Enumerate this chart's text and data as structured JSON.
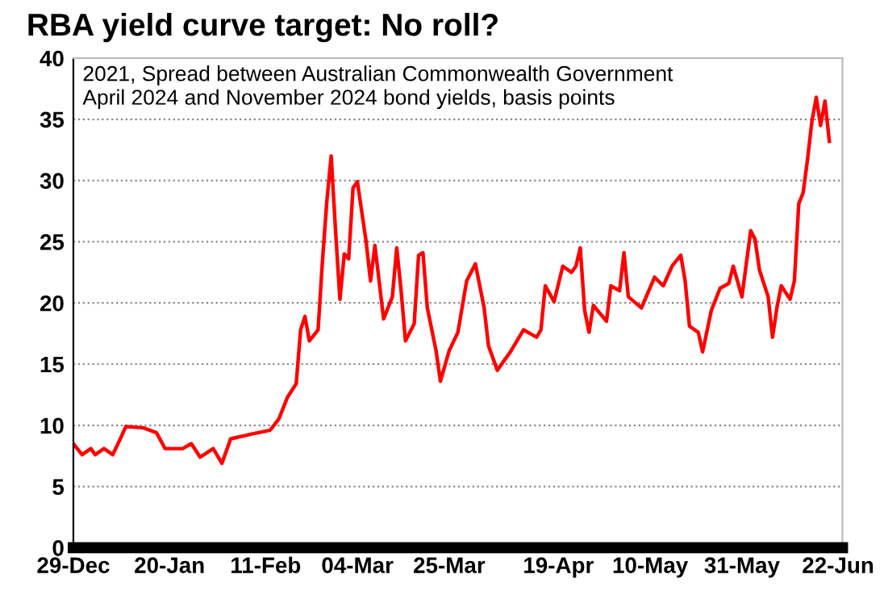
{
  "chart_data": {
    "type": "line",
    "title": "RBA yield curve target: No roll?",
    "subtitle": "2021, Spread between Australian Commonwealth Government\nApril 2024 and November 2024 bond yields, basis points",
    "x": [
      "2020-12-29",
      "2020-12-31",
      "2021-01-02",
      "2021-01-03",
      "2021-01-05",
      "2021-01-07",
      "2021-01-09",
      "2021-01-10",
      "2021-01-14",
      "2021-01-17",
      "2021-01-19",
      "2021-01-23",
      "2021-01-25",
      "2021-01-27",
      "2021-01-30",
      "2021-02-01",
      "2021-02-03",
      "2021-02-08",
      "2021-02-12",
      "2021-02-14",
      "2021-02-16",
      "2021-02-18",
      "2021-02-19",
      "2021-02-20",
      "2021-02-21",
      "2021-02-23",
      "2021-02-24",
      "2021-02-25",
      "2021-02-26",
      "2021-02-27",
      "2021-02-28",
      "2021-03-01",
      "2021-03-02",
      "2021-03-03",
      "2021-03-04",
      "2021-03-06",
      "2021-03-07",
      "2021-03-08",
      "2021-03-10",
      "2021-03-12",
      "2021-03-13",
      "2021-03-14",
      "2021-03-15",
      "2021-03-17",
      "2021-03-18",
      "2021-03-19",
      "2021-03-20",
      "2021-03-22",
      "2021-03-23",
      "2021-03-25",
      "2021-03-27",
      "2021-03-29",
      "2021-03-31",
      "2021-04-02",
      "2021-04-03",
      "2021-04-05",
      "2021-04-08",
      "2021-04-11",
      "2021-04-14",
      "2021-04-15",
      "2021-04-16",
      "2021-04-18",
      "2021-04-20",
      "2021-04-22",
      "2021-04-23",
      "2021-04-24",
      "2021-04-25",
      "2021-04-26",
      "2021-04-27",
      "2021-04-30",
      "2021-05-01",
      "2021-05-03",
      "2021-05-04",
      "2021-05-05",
      "2021-05-08",
      "2021-05-11",
      "2021-05-13",
      "2021-05-15",
      "2021-05-17",
      "2021-05-18",
      "2021-05-19",
      "2021-05-21",
      "2021-05-22",
      "2021-05-24",
      "2021-05-26",
      "2021-05-28",
      "2021-05-29",
      "2021-05-31",
      "2021-06-02",
      "2021-06-03",
      "2021-06-04",
      "2021-06-06",
      "2021-06-07",
      "2021-06-08",
      "2021-06-09",
      "2021-06-11",
      "2021-06-12",
      "2021-06-13",
      "2021-06-14",
      "2021-06-15",
      "2021-06-16",
      "2021-06-17",
      "2021-06-18",
      "2021-06-19",
      "2021-06-20"
    ],
    "series": [
      {
        "color": "#ff0000",
        "values": [
          8.5,
          7.6,
          8.1,
          7.6,
          8.1,
          7.6,
          9.1,
          9.9,
          9.8,
          9.4,
          8.1,
          8.1,
          8.5,
          7.4,
          8.1,
          6.9,
          8.9,
          9.3,
          9.6,
          10.5,
          12.3,
          13.4,
          17.8,
          18.9,
          16.9,
          17.8,
          23.4,
          28.3,
          32,
          25.9,
          20.3,
          24,
          23.6,
          29.4,
          29.9,
          25,
          21.8,
          24.7,
          18.7,
          20.5,
          24.5,
          21,
          16.9,
          18.3,
          23.9,
          24.1,
          19.6,
          16.1,
          13.6,
          16.1,
          17.6,
          21.8,
          23.2,
          19.6,
          16.5,
          14.5,
          16,
          17.8,
          17.2,
          17.8,
          21.4,
          20.1,
          23,
          22.5,
          23,
          24.5,
          19.4,
          17.6,
          19.8,
          18.5,
          21.4,
          21,
          24.1,
          20.5,
          19.6,
          22.1,
          21.4,
          23,
          23.9,
          21.8,
          18.1,
          17.6,
          16,
          19.4,
          21.2,
          21.6,
          23,
          20.5,
          25.9,
          25.2,
          22.7,
          20.5,
          17.2,
          19.6,
          21.4,
          20.3,
          21.8,
          28.1,
          29,
          31.7,
          34.8,
          36.8,
          34.5,
          36.5,
          33.2
        ]
      }
    ],
    "xlim": [
      "2020-12-29",
      "2021-06-23"
    ],
    "xticks": [
      {
        "value": "2020-12-29",
        "label": "29-Dec"
      },
      {
        "value": "2021-01-20",
        "label": "20-Jan"
      },
      {
        "value": "2021-02-11",
        "label": "11-Feb"
      },
      {
        "value": "2021-03-04",
        "label": "04-Mar"
      },
      {
        "value": "2021-03-25",
        "label": "25-Mar"
      },
      {
        "value": "2021-04-19",
        "label": "19-Apr"
      },
      {
        "value": "2021-05-10",
        "label": "10-May"
      },
      {
        "value": "2021-05-31",
        "label": "31-May"
      },
      {
        "value": "2021-06-22",
        "label": "22-Jun"
      }
    ],
    "ylim": [
      0,
      40
    ],
    "yticks": [
      0,
      5,
      10,
      15,
      20,
      25,
      30,
      35,
      40
    ],
    "grid": "y",
    "line_style": "solid",
    "marker": "none"
  }
}
